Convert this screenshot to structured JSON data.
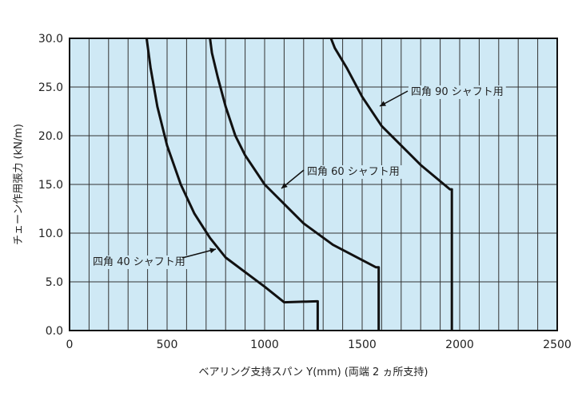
{
  "chart_data": {
    "type": "line",
    "xlabel": "ベアリング支持スパン Y(mm) (両端 2 ヵ所支持)",
    "ylabel": "チェーン作用張力 (kN/m)",
    "xlim": [
      0,
      2500
    ],
    "ylim": [
      0,
      30
    ],
    "x_ticks": [
      "0",
      "500",
      "1000",
      "1500",
      "2000",
      "2500"
    ],
    "y_ticks": [
      "0.0",
      "5.0",
      "10.0",
      "15.0",
      "20.0",
      "25.0",
      "30.0"
    ],
    "grid": true,
    "plot_background": "#cfe9f5",
    "grid_color": "#333333",
    "line_color": "#111111",
    "series": [
      {
        "name": "四角 40 シャフト用",
        "points": [
          [
            1272,
            0
          ],
          [
            1272,
            3.0
          ],
          [
            1265,
            3.0
          ],
          [
            1100,
            2.9
          ],
          [
            1000,
            4.5
          ],
          [
            900,
            6.0
          ],
          [
            800,
            7.5
          ],
          [
            720,
            9.5
          ],
          [
            640,
            12.0
          ],
          [
            570,
            15.0
          ],
          [
            500,
            19.0
          ],
          [
            450,
            23.0
          ],
          [
            415,
            27.0
          ],
          [
            395,
            30.0
          ]
        ]
      },
      {
        "name": "四角 60 シャフト用",
        "points": [
          [
            1585,
            0
          ],
          [
            1585,
            6.5
          ],
          [
            1570,
            6.5
          ],
          [
            1350,
            8.8
          ],
          [
            1200,
            11.0
          ],
          [
            1100,
            13.0
          ],
          [
            1000,
            15.0
          ],
          [
            900,
            18.0
          ],
          [
            850,
            20.0
          ],
          [
            800,
            23.0
          ],
          [
            760,
            26.0
          ],
          [
            730,
            28.5
          ],
          [
            720,
            30.0
          ]
        ]
      },
      {
        "name": "四角 90 シャフト用",
        "points": [
          [
            1960,
            0
          ],
          [
            1960,
            14.5
          ],
          [
            1950,
            14.5
          ],
          [
            1800,
            17.0
          ],
          [
            1700,
            19.0
          ],
          [
            1600,
            21.0
          ],
          [
            1500,
            24.0
          ],
          [
            1420,
            27.0
          ],
          [
            1360,
            29.0
          ],
          [
            1340,
            30.0
          ]
        ]
      }
    ]
  }
}
